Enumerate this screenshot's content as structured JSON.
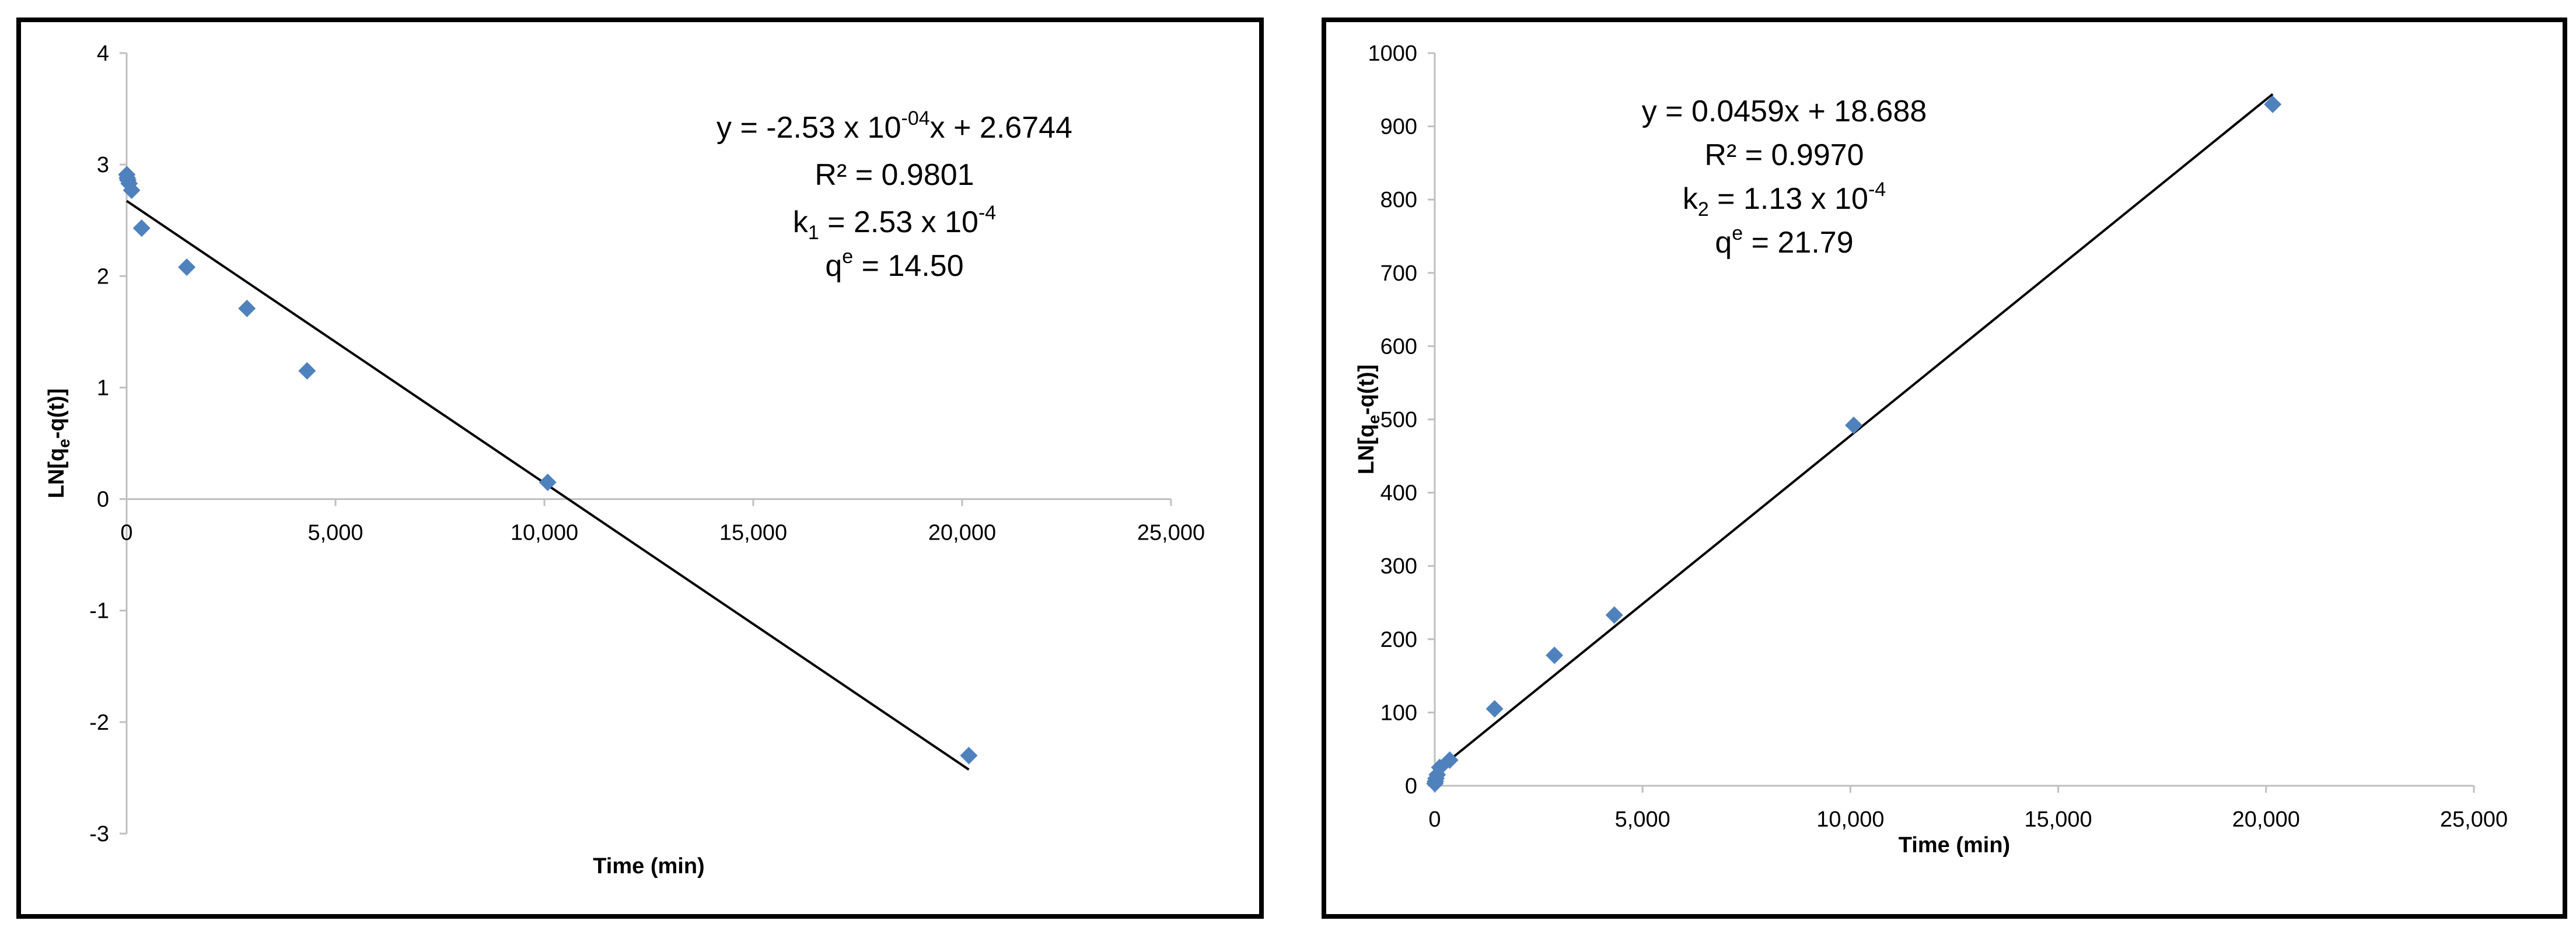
{
  "chart_data": [
    {
      "type": "scatter",
      "xlabel": "Time (min)",
      "ylabel_main": "LN[q",
      "ylabel_sub": "e",
      "ylabel_tail": "-q(t)]",
      "xlim": [
        0,
        25000
      ],
      "ylim": [
        -3,
        4
      ],
      "x_ticks": [
        0,
        5000,
        10000,
        15000,
        20000,
        25000
      ],
      "x_tick_labels": [
        "0",
        "5,000",
        "10,000",
        "15,000",
        "20,000",
        "25,000"
      ],
      "y_ticks": [
        -3,
        -2,
        -1,
        0,
        1,
        2,
        3,
        4
      ],
      "y_tick_labels": [
        "-3",
        "-2",
        "-1",
        "0",
        "1",
        "2",
        "3",
        "4"
      ],
      "grid": false,
      "marker_color": "#4f81bd",
      "series": [
        {
          "x": [
            5,
            15,
            30,
            60,
            120,
            360,
            1440,
            2880,
            4320,
            10080,
            20160
          ],
          "y": [
            2.91,
            2.88,
            2.86,
            2.83,
            2.77,
            2.43,
            2.08,
            1.71,
            1.15,
            0.15,
            -2.3
          ]
        }
      ],
      "trendline": {
        "slope": -0.000253,
        "intercept": 2.6744,
        "x_range": [
          0,
          20160
        ]
      },
      "annotations": [
        {
          "parts": [
            "y = -2.53 x 10",
            "-04",
            "x + 2.6744"
          ]
        },
        {
          "parts": [
            "R² = 0.9801"
          ]
        },
        {
          "parts": [
            "k",
            "1",
            " = 2.53 x 10",
            "-4"
          ]
        },
        {
          "parts": [
            "q",
            "e",
            " = 14.50"
          ]
        }
      ]
    },
    {
      "type": "scatter",
      "xlabel": "Time (min)",
      "ylabel_main": "LN[q",
      "ylabel_sub": "e",
      "ylabel_tail": "-q(t)]",
      "xlim": [
        0,
        25000
      ],
      "ylim": [
        0,
        1000
      ],
      "x_ticks": [
        0,
        5000,
        10000,
        15000,
        20000,
        25000
      ],
      "x_tick_labels": [
        "0",
        "5,000",
        "10,000",
        "15,000",
        "20,000",
        "25,000"
      ],
      "y_ticks": [
        0,
        100,
        200,
        300,
        400,
        500,
        600,
        700,
        800,
        900,
        1000
      ],
      "y_tick_labels": [
        "0",
        "100",
        "200",
        "300",
        "400",
        "500",
        "600",
        "700",
        "800",
        "900",
        "1000"
      ],
      "grid": false,
      "marker_color": "#4f81bd",
      "series": [
        {
          "x": [
            5,
            15,
            30,
            60,
            120,
            360,
            1440,
            2880,
            4320,
            10080,
            20160
          ],
          "y": [
            3,
            6,
            10,
            15,
            25,
            35,
            105,
            178,
            233,
            492,
            930
          ]
        }
      ],
      "trendline": {
        "slope": 0.0459,
        "intercept": 18.688,
        "x_range": [
          0,
          20160
        ]
      },
      "annotations": [
        {
          "parts": [
            "y = 0.0459x + 18.688"
          ]
        },
        {
          "parts": [
            "R² = 0.9970"
          ]
        },
        {
          "parts": [
            "k",
            "2",
            " = 1.13 x 10",
            "-4"
          ]
        },
        {
          "parts": [
            "q",
            "e",
            " = 21.79"
          ]
        }
      ]
    }
  ]
}
